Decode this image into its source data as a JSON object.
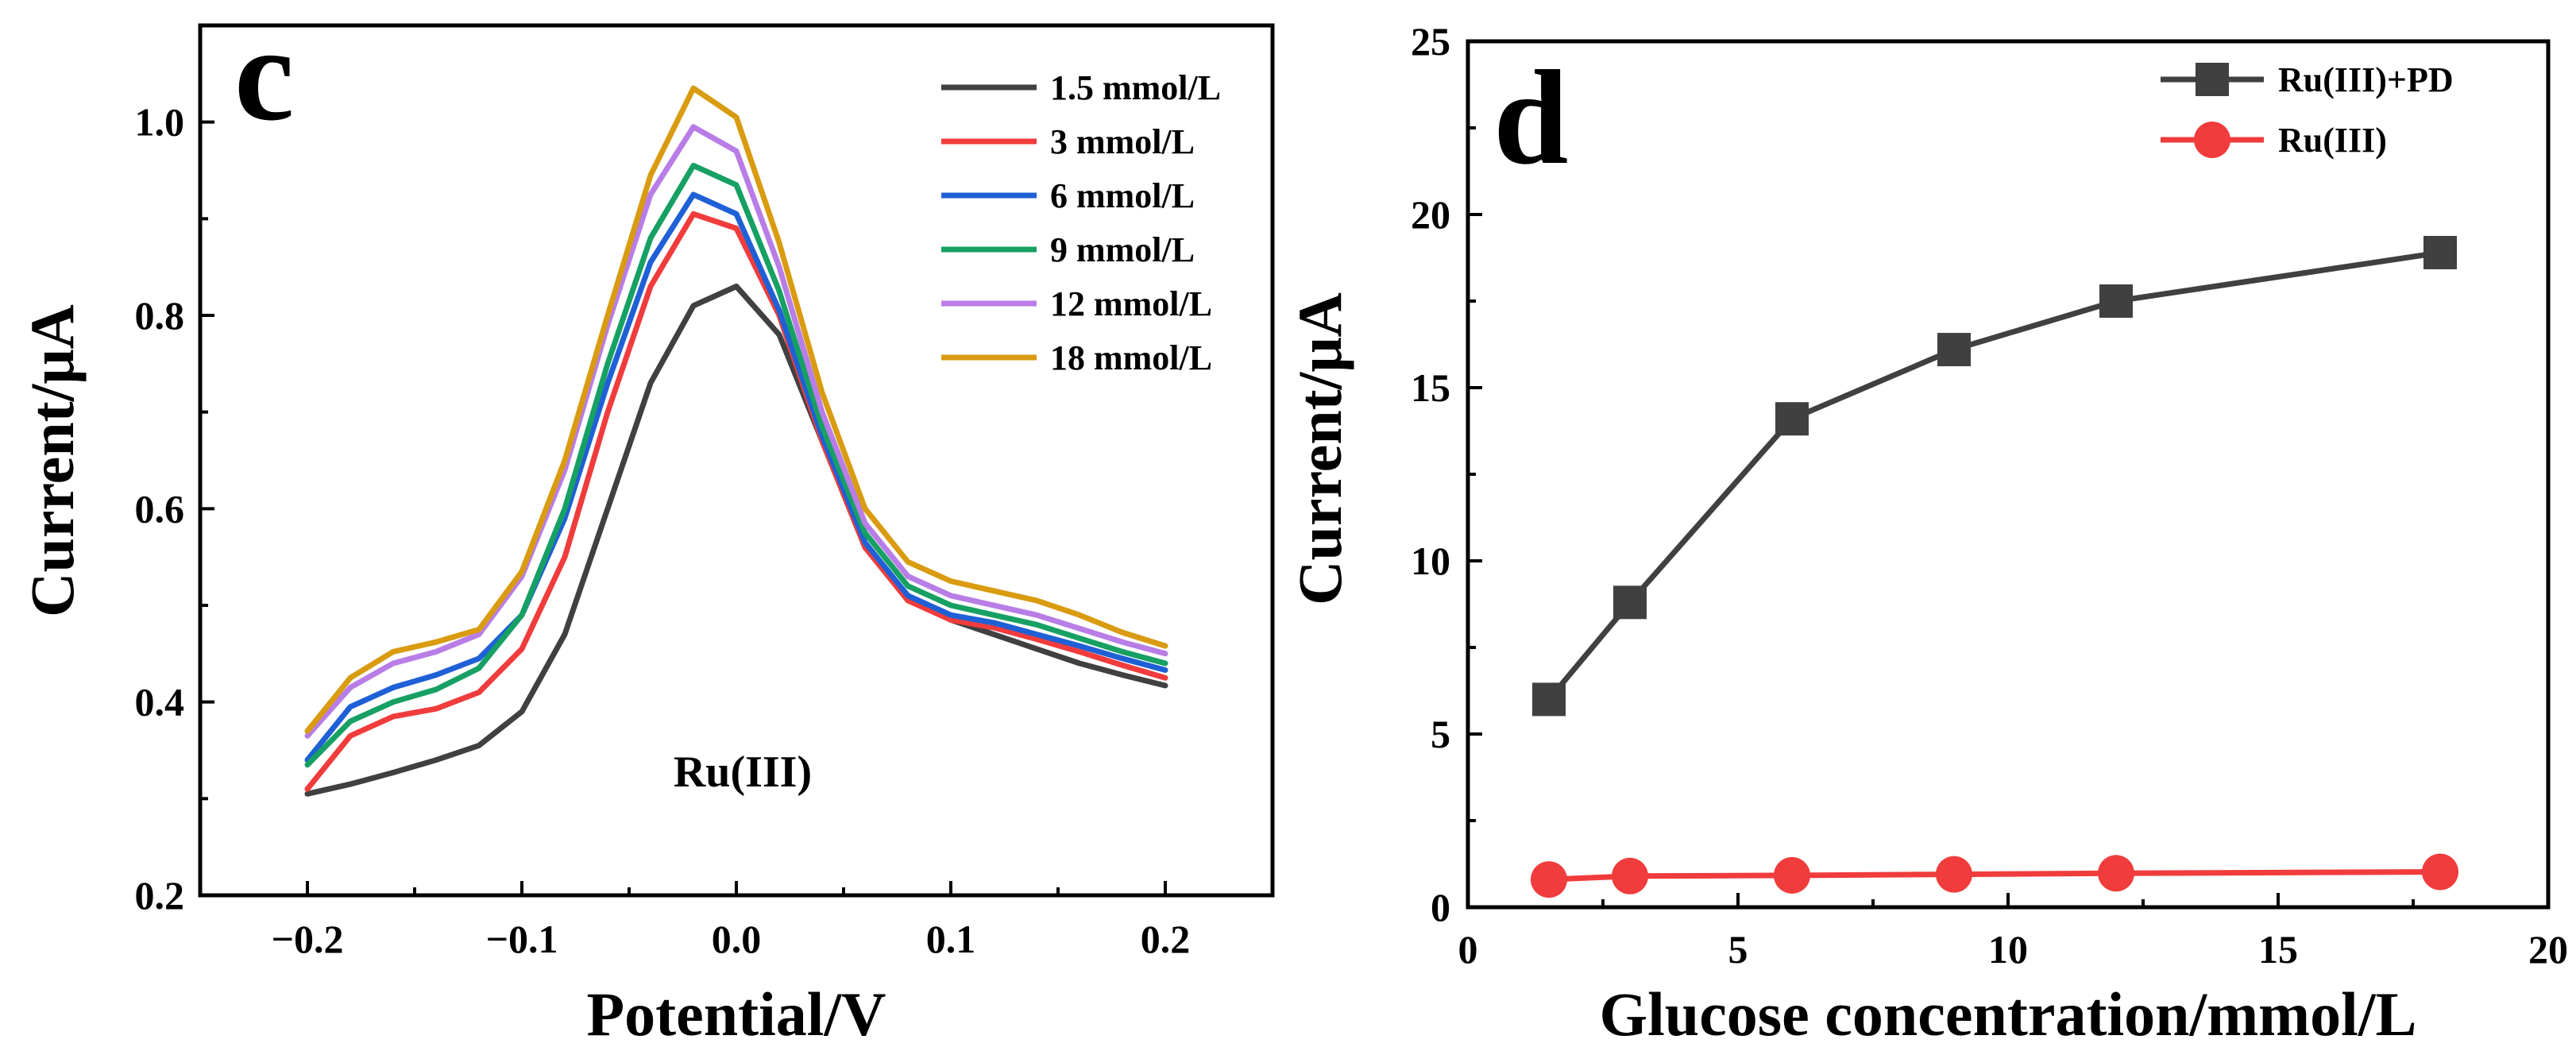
{
  "chart_data": [
    {
      "panel": "c",
      "type": "line",
      "xlabel": "Potential/V",
      "ylabel": "Current/μA",
      "xlim": [
        -0.25,
        0.25
      ],
      "ylim": [
        0.2,
        1.1
      ],
      "xticks": [
        -0.2,
        -0.1,
        0.0,
        0.1,
        0.2
      ],
      "xtick_labels": [
        "−0.2",
        "−0.1",
        "0.0",
        "0.1",
        "0.2"
      ],
      "yticks": [
        0.2,
        0.4,
        0.6,
        0.8,
        1.0
      ],
      "ytick_labels": [
        "0.2",
        "0.4",
        "0.6",
        "0.8",
        "1.0"
      ],
      "annotation": "Ru(III)",
      "legend_position": "top-right",
      "x": [
        -0.2,
        -0.18,
        -0.16,
        -0.14,
        -0.12,
        -0.1,
        -0.08,
        -0.06,
        -0.04,
        -0.02,
        0.0,
        0.02,
        0.04,
        0.06,
        0.08,
        0.1,
        0.12,
        0.14,
        0.16,
        0.18,
        0.2
      ],
      "series": [
        {
          "name": "1.5 mmol/L",
          "color": "#404040",
          "values": [
            0.305,
            0.315,
            0.327,
            0.34,
            0.355,
            0.39,
            0.47,
            0.6,
            0.73,
            0.81,
            0.83,
            0.78,
            0.67,
            0.56,
            0.51,
            0.485,
            0.47,
            0.455,
            0.44,
            0.428,
            0.417
          ]
        },
        {
          "name": "3 mmol/L",
          "color": "#f03c3c",
          "values": [
            0.31,
            0.365,
            0.385,
            0.393,
            0.41,
            0.455,
            0.55,
            0.7,
            0.83,
            0.905,
            0.89,
            0.8,
            0.67,
            0.56,
            0.505,
            0.485,
            0.477,
            0.465,
            0.452,
            0.438,
            0.425
          ]
        },
        {
          "name": "6 mmol/L",
          "color": "#1f60d6",
          "values": [
            0.34,
            0.395,
            0.415,
            0.428,
            0.445,
            0.49,
            0.59,
            0.73,
            0.855,
            0.925,
            0.905,
            0.805,
            0.675,
            0.565,
            0.51,
            0.49,
            0.482,
            0.47,
            0.458,
            0.445,
            0.433
          ]
        },
        {
          "name": "9 mmol/L",
          "color": "#17a063",
          "values": [
            0.335,
            0.38,
            0.4,
            0.413,
            0.435,
            0.49,
            0.6,
            0.75,
            0.88,
            0.955,
            0.935,
            0.825,
            0.685,
            0.575,
            0.52,
            0.5,
            0.49,
            0.48,
            0.466,
            0.452,
            0.44
          ]
        },
        {
          "name": "12 mmol/L",
          "color": "#b87de6",
          "values": [
            0.365,
            0.415,
            0.44,
            0.452,
            0.47,
            0.53,
            0.64,
            0.79,
            0.925,
            0.995,
            0.97,
            0.85,
            0.7,
            0.585,
            0.53,
            0.51,
            0.5,
            0.49,
            0.476,
            0.462,
            0.45
          ]
        },
        {
          "name": "18 mmol/L",
          "color": "#d99b0f",
          "values": [
            0.37,
            0.425,
            0.452,
            0.462,
            0.475,
            0.535,
            0.65,
            0.8,
            0.945,
            1.035,
            1.005,
            0.875,
            0.72,
            0.6,
            0.545,
            0.525,
            0.515,
            0.505,
            0.49,
            0.472,
            0.458
          ]
        }
      ]
    },
    {
      "panel": "d",
      "type": "line",
      "xlabel": "Glucose concentration/mmol/L",
      "ylabel": "Current/μA",
      "xlim": [
        0,
        20
      ],
      "ylim": [
        0,
        25
      ],
      "xticks": [
        0,
        5,
        10,
        15,
        20
      ],
      "xtick_labels": [
        "0",
        "5",
        "10",
        "15",
        "20"
      ],
      "yticks": [
        0,
        5,
        10,
        15,
        20,
        25
      ],
      "ytick_labels": [
        "0",
        "5",
        "10",
        "15",
        "20",
        "25"
      ],
      "legend_position": "top-right",
      "x": [
        1.5,
        3,
        6,
        9,
        12,
        18
      ],
      "series": [
        {
          "name": "Ru(III)+PD",
          "color": "#404040",
          "marker": "square",
          "values": [
            6.0,
            8.8,
            14.1,
            16.1,
            17.5,
            18.9
          ]
        },
        {
          "name": "Ru(III)",
          "color": "#f03c3c",
          "marker": "circle",
          "values": [
            0.8,
            0.9,
            0.92,
            0.95,
            0.98,
            1.02
          ]
        }
      ]
    }
  ]
}
